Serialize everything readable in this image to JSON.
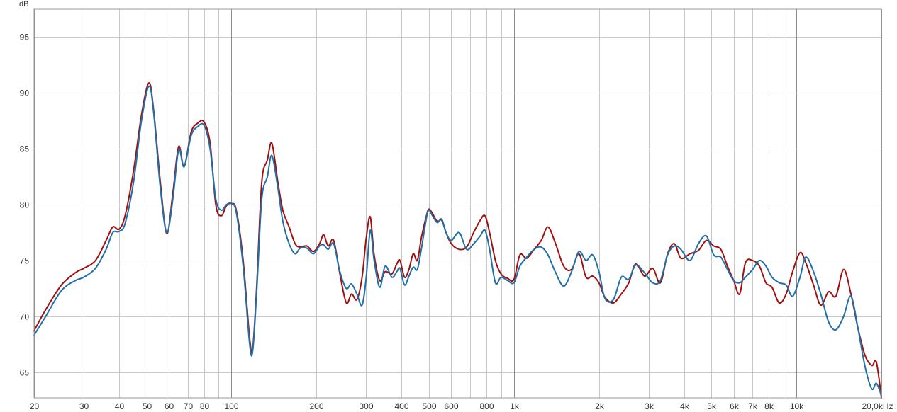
{
  "chart_data": {
    "type": "line",
    "title": "",
    "ylabel": "dB",
    "xlabel": "",
    "x_scale": "log",
    "xlim": [
      20,
      20000
    ],
    "ylim": [
      62.7,
      97.5
    ],
    "grid": true,
    "x_ticks": [
      {
        "value": 20,
        "label": "20",
        "major": true
      },
      {
        "value": 30,
        "label": "30",
        "major": false
      },
      {
        "value": 40,
        "label": "40",
        "major": false
      },
      {
        "value": 50,
        "label": "50",
        "major": false
      },
      {
        "value": 60,
        "label": "60",
        "major": false
      },
      {
        "value": 70,
        "label": "70",
        "major": false
      },
      {
        "value": 80,
        "label": "80",
        "major": false
      },
      {
        "value": 90,
        "label": "",
        "major": false
      },
      {
        "value": 100,
        "label": "100",
        "major": true
      },
      {
        "value": 200,
        "label": "200",
        "major": false
      },
      {
        "value": 300,
        "label": "300",
        "major": false
      },
      {
        "value": 400,
        "label": "400",
        "major": false
      },
      {
        "value": 500,
        "label": "500",
        "major": false
      },
      {
        "value": 600,
        "label": "600",
        "major": false
      },
      {
        "value": 700,
        "label": "",
        "major": false
      },
      {
        "value": 800,
        "label": "800",
        "major": false
      },
      {
        "value": 900,
        "label": "",
        "major": false
      },
      {
        "value": 1000,
        "label": "1k",
        "major": true
      },
      {
        "value": 2000,
        "label": "2k",
        "major": false
      },
      {
        "value": 3000,
        "label": "3k",
        "major": false
      },
      {
        "value": 4000,
        "label": "4k",
        "major": false
      },
      {
        "value": 5000,
        "label": "5k",
        "major": false
      },
      {
        "value": 6000,
        "label": "6k",
        "major": false
      },
      {
        "value": 7000,
        "label": "7k",
        "major": false
      },
      {
        "value": 8000,
        "label": "8k",
        "major": false
      },
      {
        "value": 9000,
        "label": "",
        "major": false
      },
      {
        "value": 10000,
        "label": "10k",
        "major": true
      },
      {
        "value": 20000,
        "label": "20,0kHz",
        "major": true
      }
    ],
    "y_ticks": [
      65,
      70,
      75,
      80,
      85,
      90,
      95
    ],
    "series": [
      {
        "color": "#a01010",
        "points": [
          [
            20,
            68.7
          ],
          [
            22,
            70.6
          ],
          [
            25,
            72.8
          ],
          [
            28,
            73.9
          ],
          [
            30,
            74.3
          ],
          [
            33,
            75.0
          ],
          [
            36,
            76.8
          ],
          [
            38,
            78.0
          ],
          [
            40,
            77.8
          ],
          [
            42,
            79.0
          ],
          [
            45,
            83.0
          ],
          [
            48,
            88.0
          ],
          [
            51,
            90.9
          ],
          [
            53,
            88.5
          ],
          [
            56,
            82.0
          ],
          [
            59,
            77.4
          ],
          [
            62,
            81.0
          ],
          [
            65,
            85.2
          ],
          [
            68,
            83.4
          ],
          [
            72,
            86.5
          ],
          [
            76,
            87.3
          ],
          [
            80,
            87.4
          ],
          [
            84,
            85.5
          ],
          [
            88,
            80.0
          ],
          [
            92,
            79.0
          ],
          [
            96,
            79.9
          ],
          [
            100,
            80.1
          ],
          [
            104,
            79.5
          ],
          [
            110,
            75.0
          ],
          [
            116,
            68.0
          ],
          [
            119,
            67.2
          ],
          [
            123,
            73.0
          ],
          [
            128,
            82.0
          ],
          [
            134,
            84.0
          ],
          [
            139,
            85.5
          ],
          [
            146,
            82.0
          ],
          [
            152,
            79.5
          ],
          [
            160,
            78.0
          ],
          [
            168,
            76.5
          ],
          [
            175,
            76.2
          ],
          [
            185,
            76.3
          ],
          [
            195,
            75.8
          ],
          [
            205,
            76.5
          ],
          [
            212,
            77.3
          ],
          [
            220,
            76.3
          ],
          [
            230,
            76.8
          ],
          [
            242,
            73.8
          ],
          [
            255,
            71.2
          ],
          [
            266,
            72.0
          ],
          [
            278,
            71.5
          ],
          [
            290,
            73.5
          ],
          [
            300,
            77.0
          ],
          [
            310,
            78.9
          ],
          [
            320,
            75.5
          ],
          [
            335,
            73.2
          ],
          [
            350,
            74.0
          ],
          [
            370,
            73.8
          ],
          [
            385,
            74.7
          ],
          [
            395,
            75.0
          ],
          [
            410,
            73.5
          ],
          [
            425,
            74.2
          ],
          [
            440,
            75.6
          ],
          [
            455,
            75.0
          ],
          [
            470,
            77.0
          ],
          [
            490,
            79.0
          ],
          [
            500,
            79.6
          ],
          [
            515,
            79.2
          ],
          [
            535,
            78.5
          ],
          [
            555,
            78.6
          ],
          [
            575,
            77.5
          ],
          [
            600,
            76.5
          ],
          [
            640,
            76.0
          ],
          [
            680,
            76.2
          ],
          [
            720,
            77.5
          ],
          [
            760,
            78.6
          ],
          [
            790,
            79.0
          ],
          [
            820,
            77.5
          ],
          [
            860,
            75.0
          ],
          [
            900,
            73.8
          ],
          [
            950,
            73.4
          ],
          [
            1000,
            73.3
          ],
          [
            1050,
            75.5
          ],
          [
            1110,
            75.2
          ],
          [
            1180,
            76.0
          ],
          [
            1250,
            76.8
          ],
          [
            1320,
            78.0
          ],
          [
            1400,
            76.6
          ],
          [
            1500,
            74.5
          ],
          [
            1600,
            74.2
          ],
          [
            1700,
            75.6
          ],
          [
            1800,
            73.5
          ],
          [
            1900,
            73.6
          ],
          [
            2000,
            73.0
          ],
          [
            2100,
            71.7
          ],
          [
            2250,
            71.2
          ],
          [
            2400,
            72.0
          ],
          [
            2550,
            73.0
          ],
          [
            2700,
            74.7
          ],
          [
            2900,
            73.6
          ],
          [
            3100,
            74.3
          ],
          [
            3300,
            73.0
          ],
          [
            3500,
            75.6
          ],
          [
            3700,
            76.5
          ],
          [
            3900,
            75.2
          ],
          [
            4200,
            75.6
          ],
          [
            4500,
            75.9
          ],
          [
            4800,
            76.8
          ],
          [
            5100,
            76.3
          ],
          [
            5400,
            76.0
          ],
          [
            5700,
            74.5
          ],
          [
            6000,
            73.2
          ],
          [
            6300,
            72.0
          ],
          [
            6600,
            74.8
          ],
          [
            7000,
            75.0
          ],
          [
            7400,
            74.5
          ],
          [
            7800,
            73.0
          ],
          [
            8200,
            72.6
          ],
          [
            8700,
            71.2
          ],
          [
            9200,
            72.0
          ],
          [
            9700,
            74.0
          ],
          [
            10300,
            75.7
          ],
          [
            10800,
            74.8
          ],
          [
            11500,
            72.8
          ],
          [
            12200,
            71.0
          ],
          [
            13000,
            72.2
          ],
          [
            13800,
            71.8
          ],
          [
            14700,
            74.2
          ],
          [
            15600,
            72.0
          ],
          [
            16500,
            69.0
          ],
          [
            17500,
            66.5
          ],
          [
            18500,
            65.6
          ],
          [
            19200,
            65.9
          ],
          [
            20000,
            62.7
          ]
        ]
      },
      {
        "color": "#1f6fa8",
        "points": [
          [
            20,
            68.3
          ],
          [
            22,
            70.0
          ],
          [
            25,
            72.3
          ],
          [
            28,
            73.2
          ],
          [
            30,
            73.5
          ],
          [
            33,
            74.3
          ],
          [
            36,
            76.0
          ],
          [
            38,
            77.5
          ],
          [
            40,
            77.6
          ],
          [
            42,
            78.3
          ],
          [
            45,
            82.0
          ],
          [
            48,
            87.5
          ],
          [
            51,
            90.6
          ],
          [
            53,
            88.3
          ],
          [
            56,
            81.5
          ],
          [
            59,
            77.5
          ],
          [
            62,
            80.5
          ],
          [
            65,
            84.9
          ],
          [
            68,
            83.4
          ],
          [
            72,
            86.2
          ],
          [
            76,
            87.0
          ],
          [
            80,
            87.1
          ],
          [
            84,
            85.0
          ],
          [
            88,
            80.5
          ],
          [
            92,
            79.5
          ],
          [
            96,
            80.0
          ],
          [
            100,
            80.1
          ],
          [
            104,
            79.3
          ],
          [
            110,
            74.5
          ],
          [
            116,
            67.5
          ],
          [
            119,
            67.0
          ],
          [
            123,
            72.5
          ],
          [
            128,
            80.5
          ],
          [
            134,
            82.5
          ],
          [
            139,
            84.4
          ],
          [
            146,
            81.5
          ],
          [
            152,
            78.5
          ],
          [
            160,
            76.5
          ],
          [
            168,
            75.6
          ],
          [
            175,
            76.1
          ],
          [
            185,
            76.1
          ],
          [
            195,
            75.6
          ],
          [
            205,
            76.3
          ],
          [
            212,
            76.4
          ],
          [
            220,
            76.0
          ],
          [
            230,
            76.5
          ],
          [
            242,
            74.0
          ],
          [
            255,
            72.5
          ],
          [
            266,
            72.9
          ],
          [
            278,
            72.0
          ],
          [
            290,
            71.0
          ],
          [
            300,
            73.5
          ],
          [
            310,
            77.7
          ],
          [
            320,
            75.0
          ],
          [
            335,
            72.6
          ],
          [
            350,
            74.5
          ],
          [
            370,
            73.5
          ],
          [
            385,
            74.0
          ],
          [
            395,
            74.3
          ],
          [
            410,
            72.8
          ],
          [
            425,
            73.6
          ],
          [
            440,
            74.4
          ],
          [
            455,
            74.2
          ],
          [
            470,
            76.0
          ],
          [
            490,
            78.8
          ],
          [
            500,
            79.5
          ],
          [
            515,
            79.0
          ],
          [
            535,
            78.4
          ],
          [
            555,
            78.7
          ],
          [
            575,
            77.5
          ],
          [
            600,
            76.8
          ],
          [
            640,
            77.5
          ],
          [
            680,
            76.0
          ],
          [
            720,
            76.5
          ],
          [
            760,
            77.2
          ],
          [
            790,
            77.7
          ],
          [
            820,
            76.0
          ],
          [
            860,
            73.0
          ],
          [
            900,
            73.5
          ],
          [
            950,
            73.2
          ],
          [
            1000,
            73.0
          ],
          [
            1050,
            74.5
          ],
          [
            1110,
            75.3
          ],
          [
            1180,
            76.0
          ],
          [
            1250,
            76.2
          ],
          [
            1320,
            75.5
          ],
          [
            1400,
            74.0
          ],
          [
            1500,
            72.7
          ],
          [
            1600,
            74.0
          ],
          [
            1700,
            75.8
          ],
          [
            1800,
            75.0
          ],
          [
            1900,
            75.5
          ],
          [
            2000,
            74.0
          ],
          [
            2100,
            71.6
          ],
          [
            2250,
            71.5
          ],
          [
            2400,
            73.5
          ],
          [
            2550,
            73.3
          ],
          [
            2700,
            74.6
          ],
          [
            2900,
            73.9
          ],
          [
            3100,
            73.0
          ],
          [
            3300,
            73.2
          ],
          [
            3500,
            75.5
          ],
          [
            3700,
            76.3
          ],
          [
            3900,
            76.0
          ],
          [
            4200,
            75.0
          ],
          [
            4500,
            76.5
          ],
          [
            4800,
            77.2
          ],
          [
            5100,
            75.5
          ],
          [
            5400,
            75.3
          ],
          [
            5700,
            74.2
          ],
          [
            6000,
            73.2
          ],
          [
            6300,
            73.0
          ],
          [
            6600,
            73.5
          ],
          [
            7000,
            74.2
          ],
          [
            7400,
            75.0
          ],
          [
            7800,
            74.5
          ],
          [
            8200,
            73.5
          ],
          [
            8700,
            73.0
          ],
          [
            9200,
            72.8
          ],
          [
            9700,
            71.8
          ],
          [
            10300,
            73.5
          ],
          [
            10800,
            75.3
          ],
          [
            11500,
            74.0
          ],
          [
            12200,
            72.0
          ],
          [
            13000,
            69.5
          ],
          [
            13800,
            68.8
          ],
          [
            14700,
            70.0
          ],
          [
            15600,
            71.8
          ],
          [
            16500,
            69.0
          ],
          [
            17500,
            65.5
          ],
          [
            18500,
            63.5
          ],
          [
            19200,
            64.0
          ],
          [
            20000,
            62.9
          ]
        ]
      }
    ]
  }
}
